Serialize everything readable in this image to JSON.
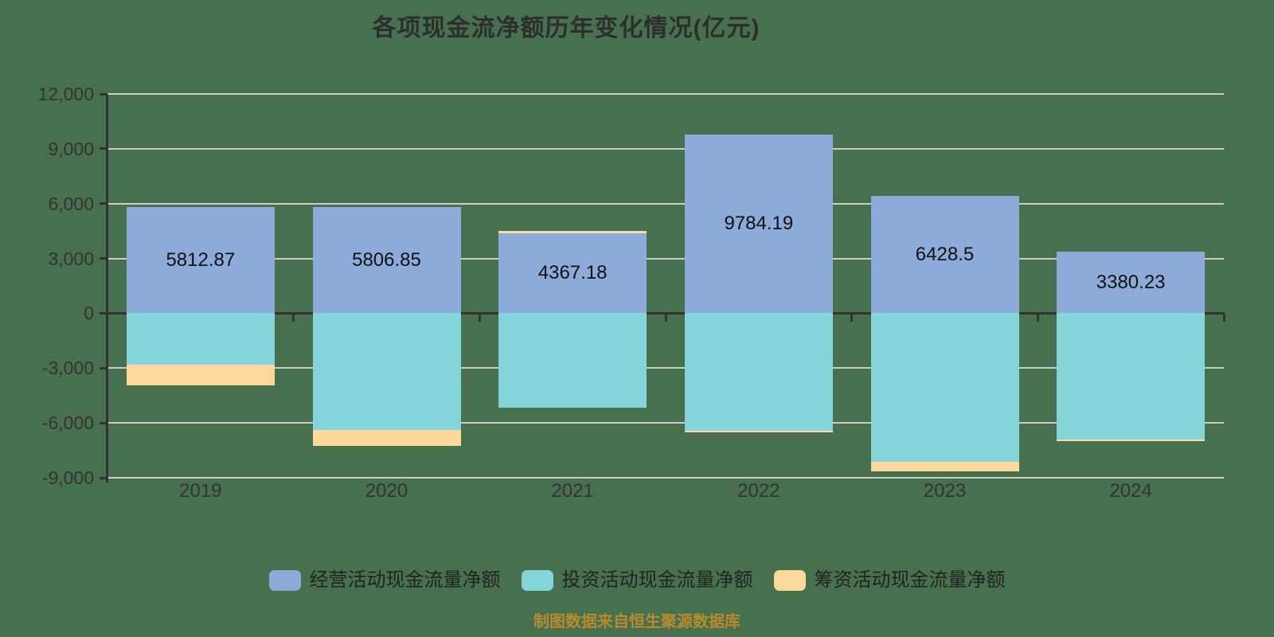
{
  "title": "各项现金流净额历年变化情况(亿元)",
  "footer": "制图数据来自恒生聚源数据库",
  "colors": {
    "background": "#47714e",
    "operating": "#8cabd8",
    "investing": "#84d5d9",
    "financing": "#fcd89d",
    "grid": "#cccccc",
    "axis": "#333333",
    "title": "#2e2e2e",
    "value_label": "#111111",
    "axis_label": "#333333",
    "legend_label": "#222222",
    "footer": "#ba8a2e"
  },
  "legend": {
    "items": [
      {
        "label": "经营活动现金流量净额",
        "color_key": "operating"
      },
      {
        "label": "投资活动现金流量净额",
        "color_key": "investing"
      },
      {
        "label": "筹资活动现金流量净额",
        "color_key": "financing"
      }
    ]
  },
  "chart_data": {
    "type": "bar",
    "stacked": true,
    "title": "各项现金流净额历年变化情况(亿元)",
    "categories": [
      "2019",
      "2020",
      "2021",
      "2022",
      "2023",
      "2024"
    ],
    "series": [
      {
        "name": "经营活动现金流量净额",
        "color_key": "operating",
        "values": [
          5812.87,
          5806.85,
          4367.18,
          9784.19,
          6428.5,
          3380.23
        ],
        "labels": [
          "5812.87",
          "5806.85",
          "4367.18",
          "9784.19",
          "6428.5",
          "3380.23"
        ]
      },
      {
        "name": "投资活动现金流量净额",
        "color_key": "investing",
        "values": [
          -2800,
          -6400,
          -5150,
          -6450,
          -8150,
          -6900
        ]
      },
      {
        "name": "筹资活动现金流量净额",
        "color_key": "financing",
        "values": [
          -1150,
          -870,
          150,
          -80,
          -480,
          -80
        ]
      }
    ],
    "ylim": [
      -9000,
      12000
    ],
    "ytick_step": 3000,
    "ytick_labels": [
      "12,000",
      "9,000",
      "6,000",
      "3,000",
      "0",
      "-3,000",
      "-6,000",
      "-9,000"
    ],
    "grid": true,
    "legend_position": "bottom"
  }
}
